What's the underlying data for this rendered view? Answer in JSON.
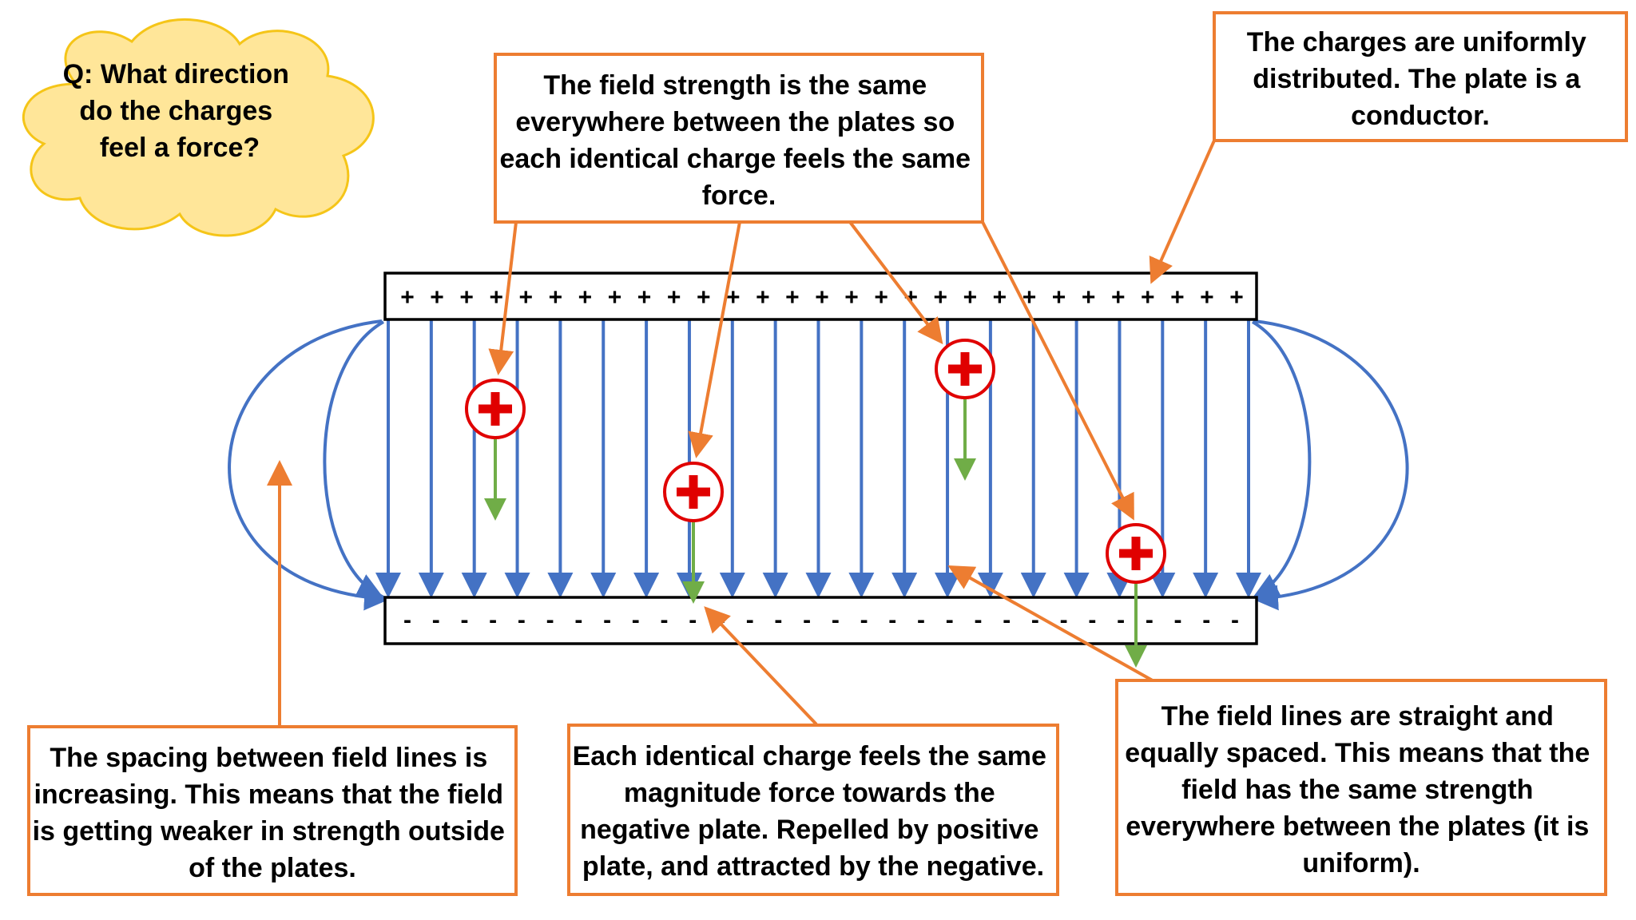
{
  "question_cloud": {
    "lines": [
      "Q: What direction",
      "do the charges",
      "feel a force?"
    ]
  },
  "callouts": {
    "field_strength": {
      "lines": [
        "The field strength is the same",
        "everywhere between the plates so",
        "each identical charge feels the same",
        "force."
      ]
    },
    "uniform_distribution": {
      "lines": [
        "The charges are uniformly",
        "distributed. The plate is a",
        "conductor."
      ]
    },
    "spacing": {
      "lines": [
        "The spacing between field lines is",
        "increasing. This means that the field",
        "is getting weaker in strength outside",
        "of the plates."
      ]
    },
    "identical_force": {
      "lines": [
        "Each identical charge feels the same",
        "magnitude force towards the",
        "negative plate. Repelled by positive",
        "plate, and attracted by the negative."
      ]
    },
    "straight_lines": {
      "lines": [
        "The field lines are straight and",
        "equally spaced. This means that the",
        "field has the same strength",
        "everywhere between the plates (it is",
        "uniform)."
      ]
    }
  },
  "plates": {
    "positive_sign": "+",
    "negative_sign": "-",
    "positive_count": 29,
    "negative_count": 30
  },
  "field_lines": {
    "straight_count": 21
  },
  "charges": {
    "symbol": "+",
    "count": 4
  },
  "colors": {
    "callout_border": "#ED7D31",
    "field_line": "#4472C4",
    "force_arrow": "#70AD47",
    "charge": "#E00000",
    "cloud_fill": "#FFE699",
    "cloud_border": "#F5C518"
  }
}
